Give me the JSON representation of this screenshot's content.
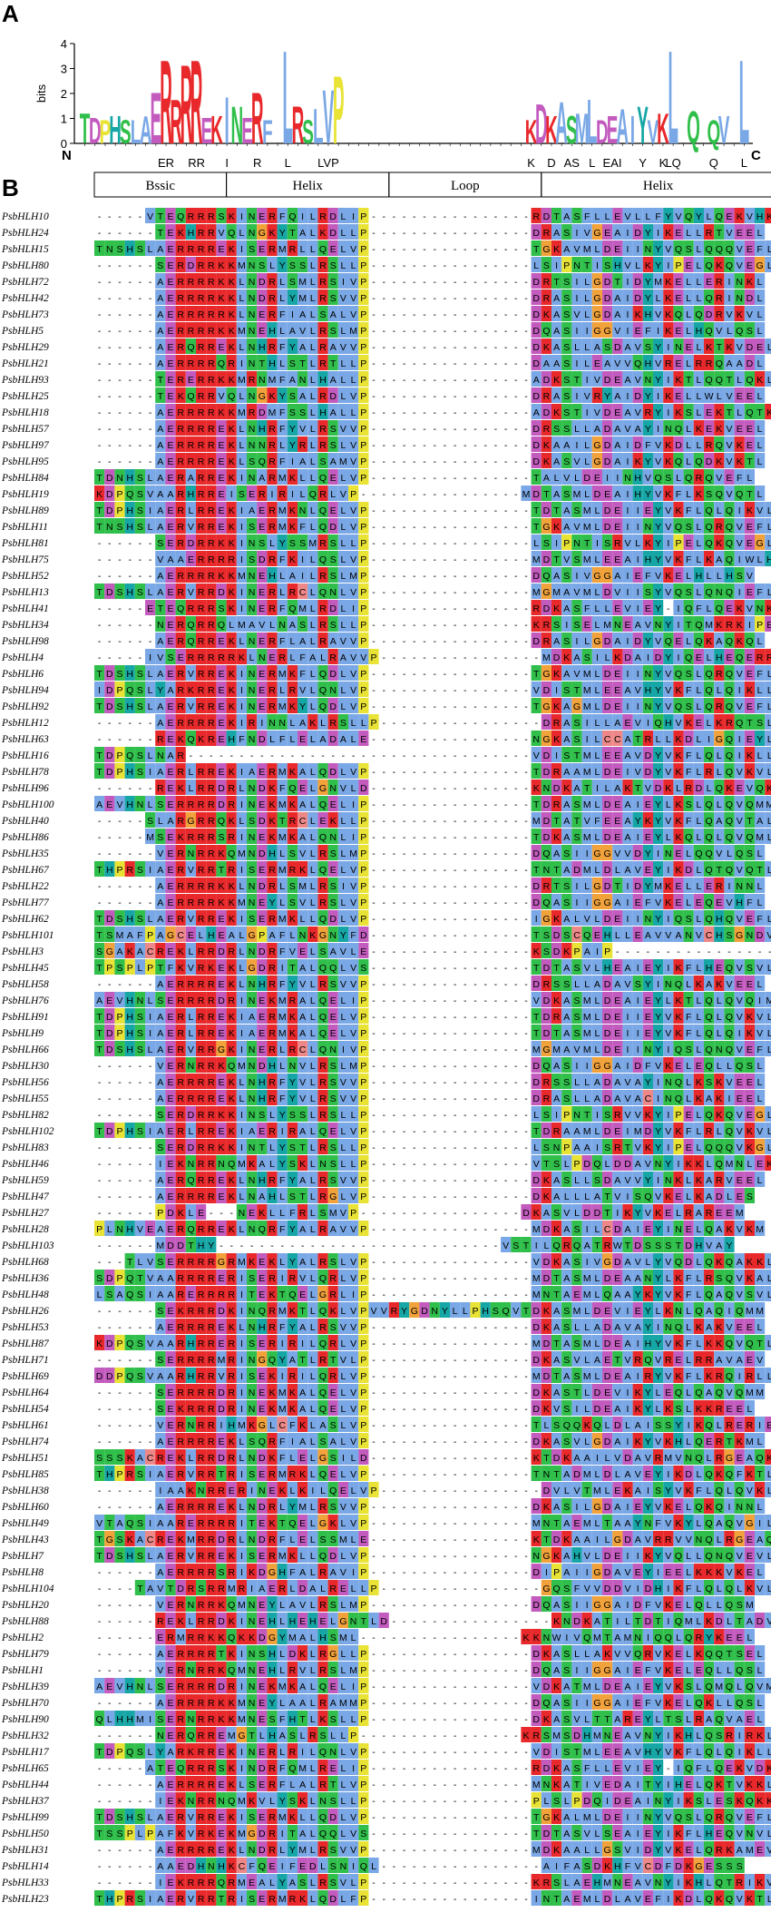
{
  "panels": {
    "a": "A",
    "b": "B"
  },
  "logo": {
    "ylabel": "bits",
    "yticks": [
      "0",
      "1",
      "2",
      "3",
      "4"
    ],
    "n_term": "N",
    "c_term": "C",
    "positions": 66,
    "letters": {
      "1": "T",
      "2": "D",
      "3": "P",
      "4": "H",
      "5": "S",
      "6": "L",
      "7": "A",
      "8": "E",
      "9": "R",
      "10": "R",
      "11": "R",
      "12": "R",
      "13": "E",
      "14": "K",
      "15": "I",
      "16": "N",
      "17": "E",
      "18": "R",
      "19": "F",
      "21": "L",
      "22": "R",
      "23": "S",
      "24": "L",
      "25": "V",
      "26": "P",
      "45": "K",
      "46": "D",
      "47": "K",
      "48": "A",
      "49": "S",
      "50": "M",
      "51": "L",
      "52": "D",
      "53": "E",
      "54": "A",
      "55": "I",
      "56": "Y",
      "57": "V",
      "58": "K",
      "59": "L",
      "61": "Q",
      "63": "Q",
      "64": "V",
      "66": "L"
    },
    "heights": {
      "1": 1.3,
      "2": 1.1,
      "3": 1.0,
      "4": 1.2,
      "5": 1.0,
      "6": 1.0,
      "7": 1.2,
      "8": 2.2,
      "9": 3.6,
      "10": 1.9,
      "11": 3.4,
      "12": 3.6,
      "13": 1.1,
      "14": 1.2,
      "15": 2.0,
      "16": 1.6,
      "17": 1.1,
      "18": 2.2,
      "19": 1.0,
      "21": 4.0,
      "22": 1.6,
      "23": 1.0,
      "24": 1.5,
      "25": 2.3,
      "26": 2.9,
      "45": 1.0,
      "46": 1.7,
      "47": 1.2,
      "48": 1.8,
      "49": 1.2,
      "50": 1.3,
      "51": 1.9,
      "52": 1.0,
      "53": 1.2,
      "54": 1.5,
      "55": 1.2,
      "56": 1.6,
      "57": 1.0,
      "58": 1.3,
      "59": 4.0,
      "61": 1.4,
      "63": 1.0,
      "64": 1.2,
      "66": 3.6
    },
    "consensus": [
      {
        "pos": 9,
        "text": "ER"
      },
      {
        "pos": 12,
        "text": "RR"
      },
      {
        "pos": 15,
        "text": "I"
      },
      {
        "pos": 18,
        "text": "R"
      },
      {
        "pos": 21,
        "text": "L"
      },
      {
        "pos": 25,
        "text": "LVP"
      },
      {
        "pos": 45,
        "text": "K"
      },
      {
        "pos": 47,
        "text": "D"
      },
      {
        "pos": 49,
        "text": "AS"
      },
      {
        "pos": 51,
        "text": "L"
      },
      {
        "pos": 53,
        "text": "EAI"
      },
      {
        "pos": 56,
        "text": "Y"
      },
      {
        "pos": 58,
        "text": "K"
      },
      {
        "pos": 59,
        "text": "LQ"
      },
      {
        "pos": 63,
        "text": "Q"
      },
      {
        "pos": 66,
        "text": "L"
      }
    ]
  },
  "regions": [
    {
      "label": "Bssic",
      "from": 0,
      "to": 13
    },
    {
      "label": "Helix",
      "from": 13,
      "to": 29
    },
    {
      "label": "Loop",
      "from": 29,
      "to": 44
    },
    {
      "label": "Helix",
      "from": 44,
      "to": 67
    }
  ],
  "colors": {
    "R": "#e8282a",
    "K": "#e8282a",
    "E": "#c35bbf",
    "D": "#c35bbf",
    "A": "#7aa8e6",
    "I": "#7aa8e6",
    "L": "#7aa8e6",
    "M": "#7aa8e6",
    "F": "#7aa8e6",
    "V": "#7aa8e6",
    "W": "#7aa8e6",
    "N": "#2fbf4a",
    "Q": "#2fbf4a",
    "S": "#2fbf4a",
    "T": "#2fbf4a",
    "P": "#e9e335",
    "G": "#f2a23a",
    "H": "#17a6a6",
    "Y": "#17a6a6",
    "C": "#ee8888"
  },
  "alignment": [
    {
      "name": "PsbHLH10",
      "seq": "-----VTEQRRRSKINERFQILRDLIP----------------RDTASFLLEVLLFYVQYLQEKVHKY"
    },
    {
      "name": "PsbHLH24",
      "seq": "------TEKHRRVQLNGKYTALKDLLP----------------DRASIVGEAIDYIKELLRTVEEL"
    },
    {
      "name": "PsbHLH15",
      "seq": "TNSHSLAERRRREKISERMRLLQELVP----------------TGKAVMLDEIINYVQSLQQQVEFL"
    },
    {
      "name": "PsbHLH80",
      "seq": "------SERDRRKKMNSLYSSLRSLLP----------------LSIPNTISHVLKYIPELQKQVEGL"
    },
    {
      "name": "PsbHLH72",
      "seq": "------AERRRRKKLNDRLSMLRSIVP----------------DRTSILGDTIDYMKELLERINKL"
    },
    {
      "name": "PsbHLH42",
      "seq": "------AERRRRKKLNDRLYMLRSVVP----------------DRASILGDAIDYLKELLQRINDL"
    },
    {
      "name": "PsbHLH73",
      "seq": "------AERRRRRKLNERFIALSALVP----------------DKASVLGDAIKHVKQLQDRVKVL"
    },
    {
      "name": "PsbHLH5",
      "seq": "------AERRRRKKMNEHLAVLRSLMP----------------DQASIIGGVIEFIKELHQVLQSL"
    },
    {
      "name": "PsbHLH29",
      "seq": "------AERQRREKLNHRFYALRAVVP----------------DKASLLASDAVSYINELKTKVDEL"
    },
    {
      "name": "PsbHLH21",
      "seq": "------AERRRRQRINTHLSTLRTLLP----------------DAASILEAVVQHVRELRRQAADL"
    },
    {
      "name": "PsbHLH93",
      "seq": "------TERERRKKMRNMFANLHALLP----------------ADKSTIVDEAVNYIKTLQQTLQKL"
    },
    {
      "name": "PsbHLH25",
      "seq": "------TEKQRRVQLNGKYSALRDLVP----------------DRASIVRYAIDYIKELLWLVEEL"
    },
    {
      "name": "PsbHLH18",
      "seq": "------AERRRRKKMRDMFSSLHALLP----------------ADKSTIVDEAVRYIKSLEKTLQTK"
    },
    {
      "name": "PsbHLH57",
      "seq": "------AERRRREKLNHRFYVLRSVVP----------------DRSSLLADAVAYINQLKEKVEEL"
    },
    {
      "name": "PsbHLH97",
      "seq": "------AERRRREKLNNRLYRLRSLVP----------------DKAAILGDAIDFVKDLLRQVKEL"
    },
    {
      "name": "PsbHLH95",
      "seq": "------AERRRREKLSQRFIALSAMVP----------------DKASVLGDAIKYVKQLQDKVKTL"
    },
    {
      "name": "PsbHLH84",
      "seq": "TDNHSLAERARREKINARMKLLQELVP----------------TALVLDEIINHVQSLQRQVEFL"
    },
    {
      "name": "PsbHLH19",
      "seq": "KDPQSVAARHRREISERIRILQRLVP----------------MDTASMLDEAIHYVKFLKSQVQTL"
    },
    {
      "name": "PsbHLH89",
      "seq": "TDPHSIAERLRREKIAERMKNLQELVP----------------TDTASMLDEIIEYVKFLQLQIKVL"
    },
    {
      "name": "PsbHLH11",
      "seq": "TNSHSLAERVRREKISERMKFLQDLVP----------------TGKAVMLDEIINYVQSLQRQVEFL"
    },
    {
      "name": "PsbHLH81",
      "seq": "------SERDRRKKINSLYSSMRSLLP----------------LSIPNTISRVLKYIPELQKQVEGL"
    },
    {
      "name": "PsbHLH75",
      "seq": "------VAAERRRRISDRFKILQSLVP----------------MDTVSMLEEAIHYVKFLKAQIWLH"
    },
    {
      "name": "PsbHLH52",
      "seq": "------AERRRRKKMNEHLAILRSLMP----------------DQASIVGGAIEFVKELHLLHSV"
    },
    {
      "name": "PsbHLH13",
      "seq": "TDSHSLAERVRRDKINERLRCLQNLVP----------------MGMAVMLDVIISYVQSLQNQIEFL"
    },
    {
      "name": "PsbHLH41",
      "seq": "-----ETEQRRRSKINERFQMLRDLIP----------------RDKASFLLEVIEY-IQFLQEKVNKY"
    },
    {
      "name": "PsbHLH34",
      "seq": "------NERQRRQLMAVLNASLRSLLP----------------KRSISELMNEAVNYITQMKRKIPEL"
    },
    {
      "name": "PsbHLH98",
      "seq": "------AERQRREKLNERFLALRAVVP----------------DRASILGDAIDYVQELQKAQKQL"
    },
    {
      "name": "PsbHLH4",
      "seq": "-----IVSERRRRRKLNERLFALRAVVP----------------MDKASILKDAIDYIQELHEQERRI"
    },
    {
      "name": "PsbHLH6",
      "seq": "TDSHSLAERVRREKINERMKFLQDLVP----------------TGKAVMLDEIINYVQSLQRQVEFL"
    },
    {
      "name": "PsbHLH94",
      "seq": "IDPQSLYARKRREKINERLRVLQNLVP----------------VDISTMLEEAVHYVKFLQLQIKLL"
    },
    {
      "name": "PsbHLH92",
      "seq": "TDSHSLAERVRREKINERMKYLQDLVP----------------TGKAGMLDEIINYVQSLQRQVEFL"
    },
    {
      "name": "PsbHLH12",
      "seq": "------AERRRREKIRINNLAKLRSLLP----------------DRASILLAEVIQHVKELKRQTSLL"
    },
    {
      "name": "PsbHLH63",
      "seq": "------REKQKREHFNDLFLELADALE----------------NGKASILCCATRLLKDLIGQIEYL"
    },
    {
      "name": "PsbHLH16",
      "seq": "TDPQSLNAR----------------------------------VDISTMLEEAVDYVKFLQLQIKLL"
    },
    {
      "name": "PsbHLH78",
      "seq": "TDPHSIAERLRREKIAERMKALQDLVP----------------TDRAAMLDEIVDYVKFLRLQVKVL"
    },
    {
      "name": "PsbHLH96",
      "seq": "------REKLRRDRLNDKFQELGNVLD----------------KNDKATILAKTVDKLRDLQKEVQKL"
    },
    {
      "name": "PsbHLH100",
      "seq": "AEVHNLSERRRRDRINEKMKALQELIP----------------TDRASMLDEAIEYLKSLQLQVQMM"
    },
    {
      "name": "PsbHLH40",
      "seq": "-----SLARGRRQKLSDKTRCLEKLLP----------------MDTATVFEEAYKYVKFLQAQVTAL"
    },
    {
      "name": "PsbHLH86",
      "seq": "-----MSEKRRRSRINEKMKALQNLIP----------------TDKASMLDEAIEYLKQLQLQVQML"
    },
    {
      "name": "PsbHLH35",
      "seq": "------VERNRRKQMNDHLSVLRSLMP----------------DQASIIGGVVDYINELQQVLQSL"
    },
    {
      "name": "PsbHLH67",
      "seq": "THPRSIAERVRRTRISERMRKLQELVP----------------TNTADMLDLAVEYIKDLQTQVQTL"
    },
    {
      "name": "PsbHLH22",
      "seq": "------AERRRRKKLNDRLSMLRSIVP----------------DRTSILGDTIDYMKELLERINNL"
    },
    {
      "name": "PsbHLH77",
      "seq": "------AERRRRKKMNEYLSVLRSLVP----------------DQASIIGGAIEFVKELEQEVHFL"
    },
    {
      "name": "PsbHLH62",
      "seq": "TDSHSLAERVRREKISERMKLLQDLVP----------------IGKALVLDEIINYIQSLQHQVEFL"
    },
    {
      "name": "PsbHLH101",
      "seq": "TSMAFPAGCELHEALGPAFLNKGNYFD----------------TSDSCQEHLLEAVVANVCHSGNDVKSE"
    },
    {
      "name": "PsbHLH3",
      "seq": "SGAKACREKLRRDRLNDRFVELSAVLE----------------KSDKPAIP-------------------"
    },
    {
      "name": "PsbHLH45",
      "seq": "TPSPLPTFKVRKEKLGDRITALQQLVS----------------TDTASVLHEAIEYIKFLHEQVSVL"
    },
    {
      "name": "PsbHLH58",
      "seq": "------AERRRREKLNHRFYVLRSVVP----------------DRSSLLADAVSYINQLKAKVEEL"
    },
    {
      "name": "PsbHLH76",
      "seq": "AEVHNLSERRRRDRINEKMRALQELIP----------------VDKASMLDEAIEYLKTLQLQVQIM"
    },
    {
      "name": "PsbHLH91",
      "seq": "TDPHSIAERLRREKIAERMKALQELVP----------------TDRASMLDEIIEYVKFLQLQVKVL"
    },
    {
      "name": "PsbHLH9",
      "seq": "TDPHSIAERLRREKIAERMKALQELVP----------------TDTASMLDEIIEYVKFLQLQIKVL"
    },
    {
      "name": "PsbHLH66",
      "seq": "TDSHSLAERVRRGKINERLRCLQNIVP----------------MGMAVMLDEIINYIQSLQNQVEFL"
    },
    {
      "name": "PsbHLH30",
      "seq": "------VERNRRKQMNDHLNVLRSLMP----------------DQASIIGGAIDFVKELEQLLQSL"
    },
    {
      "name": "PsbHLH56",
      "seq": "------AERRRREKLNHRFYVLRSVVP----------------DRSSLLADAVAYINQLKSKVEEL"
    },
    {
      "name": "PsbHLH55",
      "seq": "------AERRRREKLNHRFYVLRSVVP----------------DRASLLADAVACINQLKAKIEEL"
    },
    {
      "name": "PsbHLH82",
      "seq": "------SERDRRKKINSLYSSLRSLLP----------------LSIPNTISRVVKYIPELQKQVEGL"
    },
    {
      "name": "PsbHLH102",
      "seq": "TDPHSIAERLRREKIAERIRALQELVP----------------TDRAAMLDEIMDYVKFLRLQVKVL"
    },
    {
      "name": "PsbHLH83",
      "seq": "------SERDRRKKINTLYSTLRSLLP----------------LSNPAAISRTVKYIPELQQQVKGL"
    },
    {
      "name": "PsbHLH46",
      "seq": "------IEKNRRNQMKALYSKLNSLLP----------------VTSLPDQLDDAVNYIKKLQMNLEKM"
    },
    {
      "name": "PsbHLH59",
      "seq": "------AERQRREKLNHRFYALRSVVP----------------DKASLLSDAVVYINKLKARVEEL"
    },
    {
      "name": "PsbHLH47",
      "seq": "------AERRRREKLNAHLSTLRGLVP----------------DKALLLATVISQVKELKADLES"
    },
    {
      "name": "PsbHLH27",
      "seq": "------PDKLE---NEKLLFRLSMVP----------------DKASVLDDTIKYVKELRAREEM"
    },
    {
      "name": "PsbHLH28",
      "seq": "PLNHVEAERQRREKLNQRFYALRAVVP----------------MDKASILCDAIEYINELQAKVKM"
    },
    {
      "name": "PsbHLH103",
      "seq": "------MDDTHY----------------------------VSTILQRQATRWTDSSSTDHVAY"
    },
    {
      "name": "PsbHLH68",
      "seq": "---TLVSERRRRGRMKEKLYALRSLVP----------------VDKASIVGDAVLYVQDLQKQAKKL"
    },
    {
      "name": "PsbHLH36",
      "seq": "SDPQTVAARRRRERISERIRVLQRLVP----------------MDTASMLDEAANYLKFLRSQVKAL"
    },
    {
      "name": "PsbHLH48",
      "seq": "LSAQSIAARERRRRITEKTQELGRLIP----------------MNTAEMLQAAYKYVKFLQAQVSVL"
    },
    {
      "name": "PsbHLH26",
      "seq": "------SEKRRRDKINQRMKTLQKLVPVVRYGDNYLLPHSQVTDKASMLDEVIEYLKNLQAQIQMM"
    },
    {
      "name": "PsbHLH53",
      "seq": "------AERRRREKLNHRFYALRSVVP----------------DKASLLADAVAYINQLKAKVEEL"
    },
    {
      "name": "PsbHLH87",
      "seq": "KDPQSVAARHRRERISERIRILQRLVP----------------MDTASMLDEAIHYVKFLKKQVQTL"
    },
    {
      "name": "PsbHLH71",
      "seq": "------SERRRRMRINGQYATLRTVLP----------------DKASVLAETVRQVRELRRAVAEV"
    },
    {
      "name": "PsbHLH69",
      "seq": "DDPQSVAARHRRVRISEKIRILQRLVP----------------MDTASMLDEAIRYVKFLKRQIRLL"
    },
    {
      "name": "PsbHLH64",
      "seq": "------SERRRRDRINEKMKALQELVP----------------DKASTLDEVIKYLEQLQAQVQMM"
    },
    {
      "name": "PsbHLH54",
      "seq": "------SEKRRRDRINEKMKALQELVP----------------DKVSILDEAIKYLKSLKKREEL"
    },
    {
      "name": "PsbHLH61",
      "seq": "------VERNRRIHMKGLCFKLASLVP----------------TLSQQKQLDLAISSYIKQLRERIENL"
    },
    {
      "name": "PsbHLH74",
      "seq": "------AERRRREKLSQRFIALSALVP----------------DKASVLGDAIKYVKHLQERTKML"
    },
    {
      "name": "PsbHLH51",
      "seq": "SSSKACREKLRRDRLNDKFLELGSILD----------------KTDKAAILVDAVRMVNQLRGEAQKL"
    },
    {
      "name": "PsbHLH85",
      "seq": "THPRSIAERVRRTRISERMRKLQELVP----------------TNTADMLDLAVEYIKDLQKQFKTL"
    },
    {
      "name": "PsbHLH38",
      "seq": "------IAAKNRRERINEKLKILQELVP----------------DVLVTMLEKAISYVKFLQLQVKL"
    },
    {
      "name": "PsbHLH60",
      "seq": "------AERRRREKLNDRLYMLRSVVP----------------DKASILGDAIEYVKELQKQINNL"
    },
    {
      "name": "PsbHLH49",
      "seq": "VTAQSIAARERRRRITEKTQELGKLVP----------------MNTAEMLTAAYNFVKYLQAQVGIL"
    },
    {
      "name": "PsbHLH43",
      "seq": "TGSKACREKMRRDRLNDRFLELSSMLE----------------KTDKAAILGDAVRRVVNQLRGEAQQL"
    },
    {
      "name": "PsbHLH7",
      "seq": "TDSHSLAERVRREKISERMKLLQDLVP----------------NGKAHVLDEIIKYVQLLQNQVEVL"
    },
    {
      "name": "PsbHLH8",
      "seq": "------AERRRRSRIKDGHFALRAVIP----------------DIPAIIGDAVEYIEELKKKVKEL"
    },
    {
      "name": "PsbHLH104",
      "seq": "----TAVTDRSRRMRIAERLDALRELLP----------------GQSFVVDDVIDHIKFLQLQLKVL"
    },
    {
      "name": "PsbHLH20",
      "seq": "------VERNRRKQMNEYLAVLRSLMP----------------DQASIIGGAIDFVKELQLLQSM"
    },
    {
      "name": "PsbHLH88",
      "seq": "------REKLRRDKINEHLHEHELGNTLD----------------KNDKATILTDTIQMLKDLTADVGKL"
    },
    {
      "name": "PsbHLH2",
      "seq": "------ERMRRKKQKKDGYMALHSML----------------KKNWIVQMTAMNIQQLQRYKEEL"
    },
    {
      "name": "PsbHLH79",
      "seq": "------AERRRRTKINSHLDKLRGLLP----------------DKASLLAKVVQRVKELKQQTSEL"
    },
    {
      "name": "PsbHLH1",
      "seq": "------VERNRRKQMNEHLRVLRSLMP----------------DQASIIGGAIEFVKELEQLLQSL"
    },
    {
      "name": "PsbHLH39",
      "seq": "AEVHNLSERRRRDRINEKMKALQELIP----------------VDKATMLDEAIEYVKSLQMQLQVM"
    },
    {
      "name": "PsbHLH70",
      "seq": "------AERRRRKKMNEYLAALRAMMP----------------DQASIIGGAIEFVKELQKLLQSL"
    },
    {
      "name": "PsbHLH90",
      "seq": "QLHHMISERNRRKKMNESFHTLKSLLP----------------DKASVLTTAREYLTSLRAQVAEL"
    },
    {
      "name": "PsbHLH32",
      "seq": "------NERQRREMGTLHASLRSLLP----------------KRSMSDHMNEAVNYIKHLQSRIRKL"
    },
    {
      "name": "PsbHLH17",
      "seq": "TDPQSLYARKRREKINERLRILQNLVP----------------VDISTMLEEAVHYVKFLQLQIKLL"
    },
    {
      "name": "PsbHLH65",
      "seq": "-----ATEQRRRSKINDRFQMLRELIP----------------RDKASFLLEVIEY-IQFLQEKVDKY"
    },
    {
      "name": "PsbHLH44",
      "seq": "------AERRRREKLSERFLALRTLVP----------------MNKATIVEDAITYIHELQKTVKKL"
    },
    {
      "name": "PsbHLH37",
      "seq": "------IEKNRRNQMKVLYSKLNSLLP----------------PLSLPDQIDEAINYIKSLESKQKKS"
    },
    {
      "name": "PsbHLH99",
      "seq": "TDSHSLAERVRREKISERMKLLQDLVP----------------TGKALMLDEIINYVQSLQRQVEFL"
    },
    {
      "name": "PsbHLH50",
      "seq": "TSSPLPAFKVRKEKMGDRITALQQLVS----------------TDTASVLSEAIEYIKFLHEQVNVL"
    },
    {
      "name": "PsbHLH31",
      "seq": "------AERRRREKLNDRLYMLRSVVP----------------MDKAALLGSVIDYVKELQRKAMEV"
    },
    {
      "name": "PsbHLH14",
      "seq": "------AAEDHNHKCFQEIFEDLSNIQL----------------AIFASDKHFVCDFDKGESSS"
    },
    {
      "name": "PsbHLH33",
      "seq": "------IEKRRRQRMEALYASLRSVLP----------------KRSLAEHMNEAVNYIKHLQTRIKVL"
    },
    {
      "name": "PsbHLH23",
      "seq": "THPRSIAERVRRTRISERMRKLQDLFP----------------INTAEMLDLAVEFIKDLQKQVKTL"
    }
  ]
}
